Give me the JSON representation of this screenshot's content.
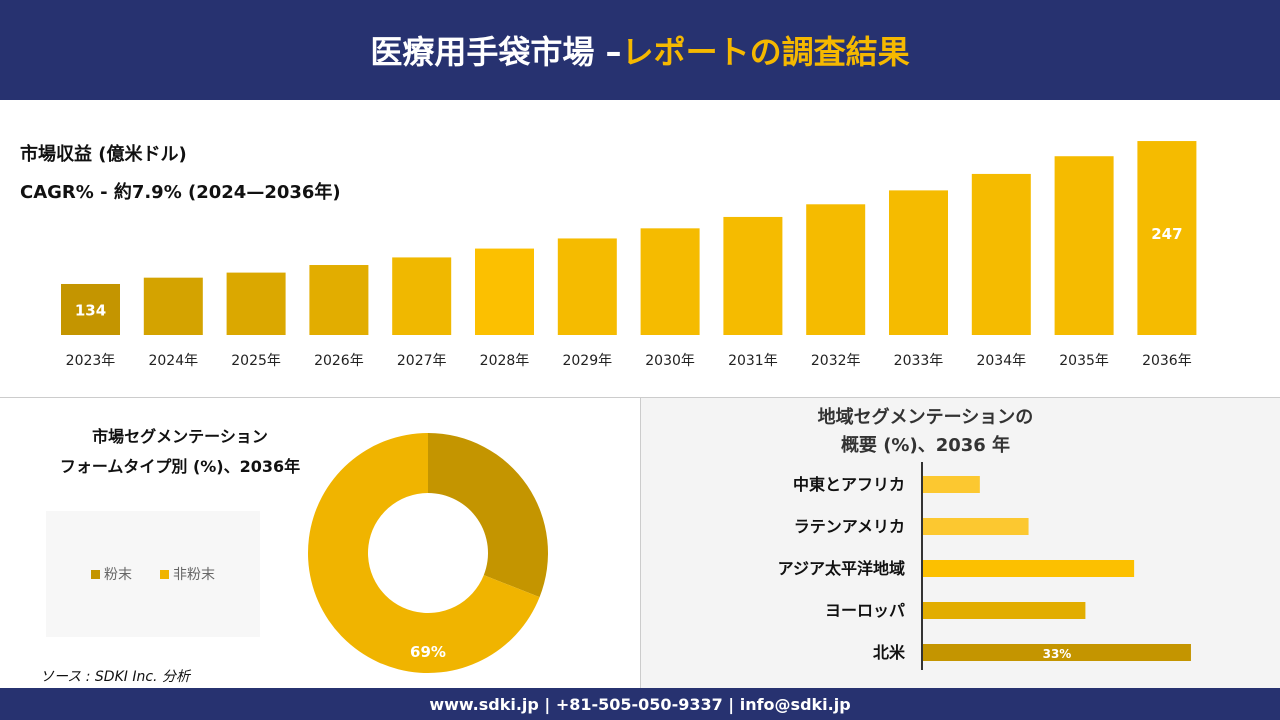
{
  "header": {
    "title_main": "医療用手袋市場 –",
    "title_accent": "レポートの調査結果"
  },
  "revenue": {
    "title": "市場収益 (億米ドル)",
    "cagr": "CAGR% - 約7.9% (2024—2036年)"
  },
  "chart_data": [
    {
      "type": "bar",
      "title": "市場収益 (億米ドル)",
      "categories": [
        "2023年",
        "2024年",
        "2025年",
        "2026年",
        "2027年",
        "2028年",
        "2029年",
        "2030年",
        "2031年",
        "2032年",
        "2033年",
        "2034年",
        "2035年",
        "2036年"
      ],
      "values": [
        134,
        139,
        143,
        149,
        155,
        162,
        170,
        178,
        187,
        197,
        208,
        221,
        235,
        247
      ],
      "data_labels": {
        "0": "134",
        "13": "247"
      },
      "colors": [
        "#c49500",
        "#d4a300",
        "#dba800",
        "#e2ad00",
        "#f0b800",
        "#fcc000",
        "#f5bb00",
        "#f5bb00",
        "#f5bb00",
        "#f5bb00",
        "#f5bb00",
        "#f5bb00",
        "#f5bb00",
        "#f5bb00"
      ]
    },
    {
      "type": "pie",
      "title": "市場セグメンテーション フォームタイプ別 (%)、2036年",
      "labels": [
        "粉末",
        "非粉末"
      ],
      "values": [
        31,
        69
      ],
      "data_labels": [
        "",
        "69%"
      ],
      "colors": [
        "#c49500",
        "#f0b400"
      ]
    },
    {
      "type": "bar",
      "orientation": "horizontal",
      "title": "地域セグメンテーションの 概要 (%)、2036 年",
      "categories": [
        "中東とアフリカ",
        "ラテンアメリカ",
        "アジア太平洋地域",
        "ヨーロッパ",
        "北米"
      ],
      "values": [
        7,
        13,
        26,
        20,
        33
      ],
      "data_labels": [
        "",
        "",
        "",
        "",
        "33%"
      ],
      "colors": [
        "#fcc830",
        "#fcc830",
        "#fcc000",
        "#e2ad00",
        "#c49500"
      ]
    }
  ],
  "segment": {
    "title_line1": "市場セグメンテーション",
    "title_line2": "フォームタイプ別 (%)、2036年"
  },
  "region": {
    "title_line1": "地域セグメンテーションの",
    "title_line2": "概要 (%)、2036 年"
  },
  "source": "ソース : SDKI Inc. 分析",
  "footer": "www.sdki.jp | +81-505-050-9337 | info@sdki.jp"
}
